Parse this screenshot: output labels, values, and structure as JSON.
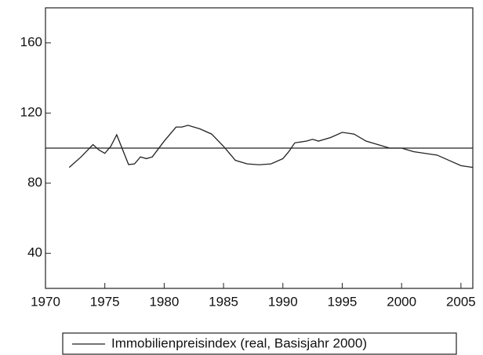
{
  "chart_data": {
    "type": "line",
    "x": [
      1972,
      1973,
      1974,
      1974.5,
      1975,
      1975.5,
      1976,
      1977,
      1977.5,
      1978,
      1978.5,
      1979,
      1980,
      1981,
      1981.5,
      1982,
      1983,
      1984,
      1985,
      1985.5,
      1986,
      1987,
      1988,
      1989,
      1990,
      1990.5,
      1991,
      1992,
      1992.5,
      1993,
      1994,
      1995,
      1996,
      1997,
      1998,
      1999,
      2000,
      2001,
      2002,
      2003,
      2004,
      2005,
      2006
    ],
    "series": [
      {
        "name": "Immobilienpreisindex (real, Basisjahr 2000)",
        "color": "#222222",
        "values": [
          89,
          95,
          102,
          99,
          97,
          101,
          107.6,
          90.6,
          91,
          95,
          94,
          95,
          104,
          112,
          112,
          113,
          111,
          108,
          101,
          97,
          93,
          91,
          90.5,
          91,
          94,
          98,
          103,
          104,
          105,
          104,
          106,
          109,
          108,
          104,
          102,
          100,
          100,
          98,
          97,
          96,
          93,
          90,
          89
        ]
      }
    ],
    "hline": 100,
    "xlim": [
      1970,
      2006
    ],
    "xticks": [
      1970,
      1975,
      1980,
      1985,
      1990,
      1995,
      2000,
      2005
    ],
    "ylim": [
      20,
      180
    ],
    "yticks": [
      40,
      80,
      120,
      160
    ]
  }
}
